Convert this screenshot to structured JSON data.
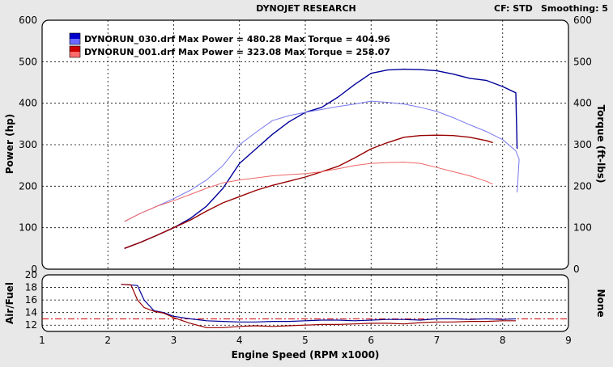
{
  "header": {
    "title": "DYNOJET RESEARCH",
    "cf_label": "CF: STD",
    "smoothing_label": "Smoothing: 5"
  },
  "chart_data": [
    {
      "type": "line",
      "name": "power-torque",
      "ylabel": "Power (hp)",
      "y2label": "Torque (ft-lbs)",
      "xlim": [
        1,
        9
      ],
      "ylim": [
        0,
        600
      ],
      "y2lim": [
        0,
        600
      ],
      "yticks": [
        0,
        100,
        200,
        300,
        400,
        500,
        600
      ],
      "y2ticks": [
        0,
        100,
        200,
        300,
        400,
        500,
        600
      ],
      "grid": true,
      "legend_position": "top-left",
      "legend": [
        {
          "text": "DYNORUN_030.drf Max Power = 480.28 Max Torque = 404.96",
          "color_top": "#0000cc",
          "color_bottom": "#6a6aff"
        },
        {
          "text": "DYNORUN_001.drf Max Power = 323.08 Max Torque = 258.07",
          "color_top": "#cc0000",
          "color_bottom": "#ff6a6a"
        }
      ],
      "series": [
        {
          "role": "power-run-030",
          "color": "#000099",
          "width": 1.4,
          "points": [
            [
              2.25,
              50
            ],
            [
              2.5,
              65
            ],
            [
              2.75,
              82
            ],
            [
              3.0,
              100
            ],
            [
              3.25,
              122
            ],
            [
              3.5,
              152
            ],
            [
              3.75,
              195
            ],
            [
              4.0,
              255
            ],
            [
              4.25,
              290
            ],
            [
              4.5,
              325
            ],
            [
              4.75,
              355
            ],
            [
              5.0,
              378
            ],
            [
              5.25,
              390
            ],
            [
              5.5,
              415
            ],
            [
              5.75,
              445
            ],
            [
              6.0,
              472
            ],
            [
              6.25,
              480
            ],
            [
              6.5,
              482
            ],
            [
              6.75,
              481
            ],
            [
              7.0,
              478
            ],
            [
              7.25,
              470
            ],
            [
              7.5,
              460
            ],
            [
              7.75,
              455
            ],
            [
              8.0,
              440
            ],
            [
              8.2,
              425
            ],
            [
              8.22,
              290
            ]
          ]
        },
        {
          "role": "torque-run-030",
          "color": "#7777ee",
          "width": 1,
          "points": [
            [
              2.25,
              115
            ],
            [
              2.5,
              135
            ],
            [
              2.75,
              152
            ],
            [
              3.0,
              170
            ],
            [
              3.25,
              190
            ],
            [
              3.5,
              215
            ],
            [
              3.75,
              250
            ],
            [
              4.0,
              300
            ],
            [
              4.25,
              330
            ],
            [
              4.5,
              358
            ],
            [
              4.75,
              370
            ],
            [
              5.0,
              378
            ],
            [
              5.25,
              385
            ],
            [
              5.5,
              392
            ],
            [
              5.75,
              398
            ],
            [
              6.0,
              405
            ],
            [
              6.25,
              402
            ],
            [
              6.5,
              398
            ],
            [
              6.75,
              390
            ],
            [
              7.0,
              380
            ],
            [
              7.25,
              365
            ],
            [
              7.5,
              348
            ],
            [
              7.75,
              332
            ],
            [
              8.0,
              312
            ],
            [
              8.2,
              285
            ],
            [
              8.25,
              265
            ],
            [
              8.22,
              185
            ]
          ]
        },
        {
          "role": "power-run-001",
          "color": "#990000",
          "width": 1.4,
          "points": [
            [
              2.25,
              50
            ],
            [
              2.5,
              65
            ],
            [
              2.75,
              82
            ],
            [
              3.0,
              100
            ],
            [
              3.25,
              118
            ],
            [
              3.5,
              140
            ],
            [
              3.75,
              160
            ],
            [
              4.0,
              175
            ],
            [
              4.25,
              190
            ],
            [
              4.5,
              202
            ],
            [
              4.75,
              212
            ],
            [
              5.0,
              222
            ],
            [
              5.25,
              235
            ],
            [
              5.5,
              248
            ],
            [
              5.75,
              268
            ],
            [
              6.0,
              290
            ],
            [
              6.25,
              305
            ],
            [
              6.5,
              318
            ],
            [
              6.75,
              322
            ],
            [
              7.0,
              323
            ],
            [
              7.25,
              322
            ],
            [
              7.5,
              318
            ],
            [
              7.75,
              310
            ],
            [
              7.85,
              305
            ]
          ]
        },
        {
          "role": "torque-run-001",
          "color": "#ee6666",
          "width": 1,
          "points": [
            [
              2.25,
              115
            ],
            [
              2.5,
              135
            ],
            [
              2.75,
              152
            ],
            [
              3.0,
              165
            ],
            [
              3.25,
              180
            ],
            [
              3.5,
              195
            ],
            [
              3.75,
              208
            ],
            [
              4.0,
              215
            ],
            [
              4.25,
              220
            ],
            [
              4.5,
              225
            ],
            [
              4.75,
              228
            ],
            [
              5.0,
              230
            ],
            [
              5.25,
              235
            ],
            [
              5.5,
              242
            ],
            [
              5.75,
              250
            ],
            [
              6.0,
              255
            ],
            [
              6.25,
              257
            ],
            [
              6.5,
              258
            ],
            [
              6.75,
              255
            ],
            [
              7.0,
              245
            ],
            [
              7.25,
              235
            ],
            [
              7.5,
              225
            ],
            [
              7.75,
              212
            ],
            [
              7.85,
              205
            ]
          ]
        }
      ]
    },
    {
      "type": "line",
      "name": "air-fuel",
      "ylabel": "Air/Fuel",
      "y2label": "None",
      "xlabel": "Engine Speed (RPM x1000)",
      "xlim": [
        1,
        9
      ],
      "ylim": [
        11,
        20
      ],
      "xticks": [
        1,
        2,
        3,
        4,
        5,
        6,
        7,
        8,
        9
      ],
      "yticks": [
        12,
        14,
        16,
        18,
        20
      ],
      "grid": true,
      "reference_line": {
        "value": 13.0,
        "color": "#cc0000",
        "style": "dash-dot"
      },
      "series": [
        {
          "role": "afr-run-030",
          "color": "#000099",
          "width": 1.2,
          "points": [
            [
              2.2,
              18.5
            ],
            [
              2.45,
              18.3
            ],
            [
              2.55,
              16.0
            ],
            [
              2.7,
              14.3
            ],
            [
              2.85,
              14.0
            ],
            [
              3.0,
              13.4
            ],
            [
              3.25,
              13.0
            ],
            [
              3.5,
              12.7
            ],
            [
              3.75,
              12.6
            ],
            [
              4.0,
              12.5
            ],
            [
              4.25,
              12.5
            ],
            [
              4.5,
              12.6
            ],
            [
              4.75,
              12.6
            ],
            [
              5.0,
              12.7
            ],
            [
              5.25,
              12.8
            ],
            [
              5.5,
              12.8
            ],
            [
              5.75,
              12.7
            ],
            [
              6.0,
              12.8
            ],
            [
              6.25,
              12.9
            ],
            [
              6.5,
              12.9
            ],
            [
              6.75,
              12.8
            ],
            [
              7.0,
              13.0
            ],
            [
              7.25,
              13.0
            ],
            [
              7.5,
              12.9
            ],
            [
              7.75,
              13.0
            ],
            [
              8.0,
              12.9
            ],
            [
              8.2,
              13.0
            ]
          ]
        },
        {
          "role": "afr-run-001",
          "color": "#990000",
          "width": 1.2,
          "points": [
            [
              2.2,
              18.5
            ],
            [
              2.35,
              18.4
            ],
            [
              2.45,
              16.0
            ],
            [
              2.55,
              14.8
            ],
            [
              2.7,
              14.2
            ],
            [
              2.85,
              13.9
            ],
            [
              3.0,
              13.2
            ],
            [
              3.25,
              12.3
            ],
            [
              3.5,
              11.6
            ],
            [
              3.75,
              11.6
            ],
            [
              4.0,
              11.8
            ],
            [
              4.25,
              11.9
            ],
            [
              4.5,
              11.8
            ],
            [
              4.75,
              11.9
            ],
            [
              5.0,
              12.0
            ],
            [
              5.25,
              12.1
            ],
            [
              5.5,
              12.1
            ],
            [
              5.75,
              12.2
            ],
            [
              6.0,
              12.3
            ],
            [
              6.25,
              12.3
            ],
            [
              6.5,
              12.2
            ],
            [
              6.75,
              12.4
            ],
            [
              7.0,
              12.5
            ],
            [
              7.25,
              12.5
            ],
            [
              7.5,
              12.6
            ],
            [
              7.75,
              12.6
            ],
            [
              8.0,
              12.7
            ],
            [
              8.2,
              12.7
            ]
          ]
        }
      ]
    }
  ]
}
